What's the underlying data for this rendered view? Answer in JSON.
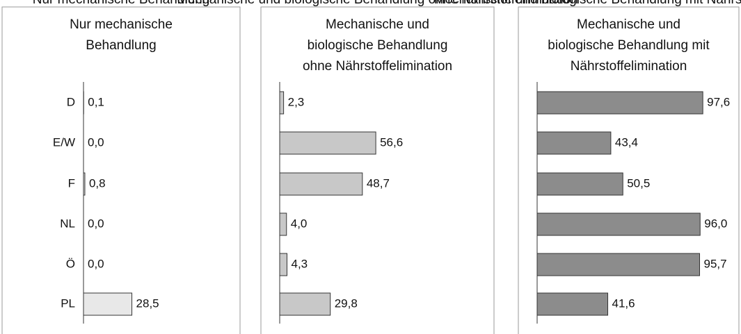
{
  "chart_data": [
    {
      "type": "barh",
      "title": "Nur mechanische\nBehandlung",
      "categories": [
        "D",
        "E/W",
        "F",
        "NL",
        "Ö",
        "PL"
      ],
      "values": [
        0.1,
        0.0,
        0.8,
        0.0,
        0.0,
        28.5
      ],
      "value_labels": [
        "0,1",
        "0,0",
        "0,8",
        "0,0",
        "0,0",
        "28,5"
      ],
      "color": "#e8e8e8",
      "xlim": [
        0,
        100
      ]
    },
    {
      "type": "barh",
      "title": "Mechanische und\nbiologische Behandlung\nohne Nährstoffelimination",
      "values": [
        2.3,
        56.6,
        48.7,
        4.0,
        4.3,
        29.8
      ],
      "value_labels": [
        "2,3",
        "56,6",
        "48,7",
        "4,0",
        "4,3",
        "29,8"
      ],
      "color": "#c8c8c8",
      "xlim": [
        0,
        100
      ]
    },
    {
      "type": "barh",
      "title": "Mechanische und\nbiologische Behandlung mit\nNährstoffelimination",
      "values": [
        97.6,
        43.4,
        50.5,
        96.0,
        95.7,
        41.6
      ],
      "value_labels": [
        "97,6",
        "43,4",
        "50,5",
        "96,0",
        "95,7",
        "41,6"
      ],
      "color": "#8c8c8c",
      "xlim": [
        0,
        100
      ]
    }
  ]
}
